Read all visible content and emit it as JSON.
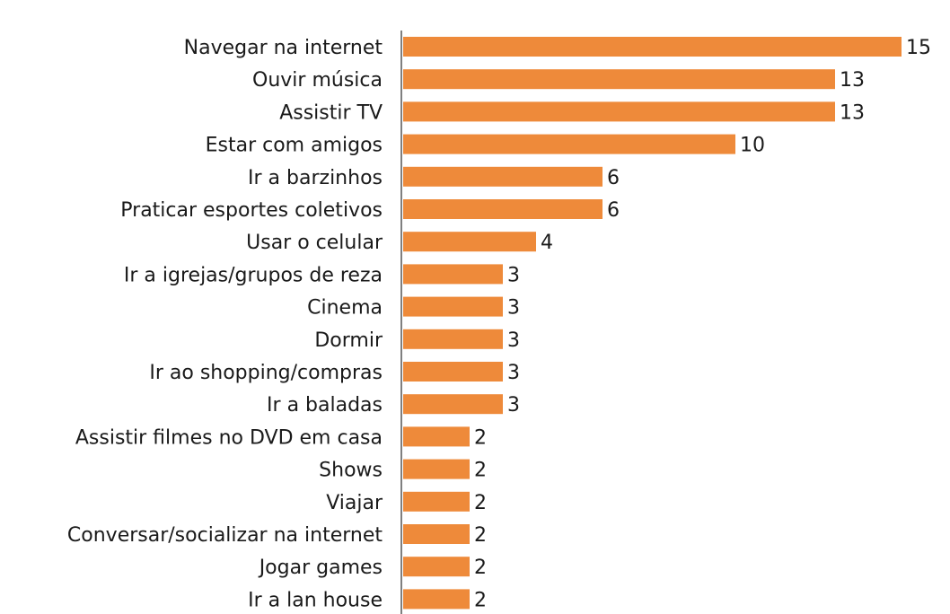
{
  "chart_data": {
    "type": "bar",
    "orientation": "horizontal",
    "title": "",
    "xlabel": "",
    "ylabel": "",
    "categories": [
      "Navegar na internet",
      "Ouvir música",
      "Assistir TV",
      "Estar com amigos",
      "Ir a barzinhos",
      "Praticar esportes coletivos",
      "Usar o celular",
      "Ir a igrejas/grupos de reza",
      "Cinema",
      "Dormir",
      "Ir ao shopping/compras",
      "Ir a baladas",
      "Assistir filmes no DVD em casa",
      "Shows",
      "Viajar",
      "Conversar/socializar na internet",
      "Jogar games",
      "Ir a lan house"
    ],
    "values": [
      15,
      13,
      13,
      10,
      6,
      6,
      4,
      3,
      3,
      3,
      3,
      3,
      2,
      2,
      2,
      2,
      2,
      2
    ],
    "xlim": [
      0,
      15
    ],
    "grid": false,
    "legend": "none",
    "colors": {
      "bar": "#EE8A3A",
      "axis": "#555555",
      "text": "#1a1a1a"
    }
  }
}
